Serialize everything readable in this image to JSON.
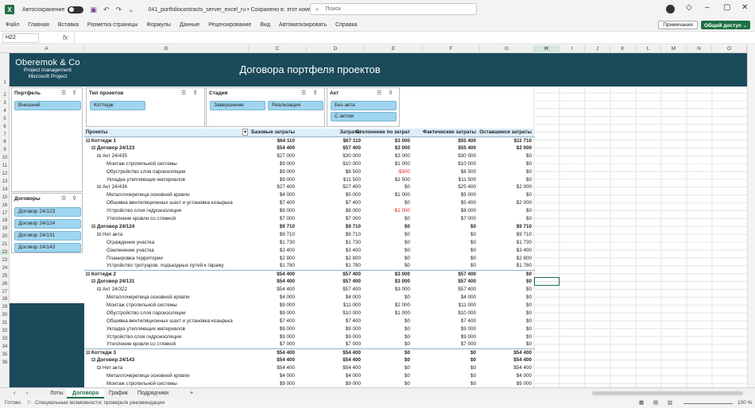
{
  "titlebar": {
    "autosave_label": "Автосохранение",
    "doc_title": "041_portfoliocontracts_server_excel_ru • Сохранено в: этот компьютер ⌄",
    "search_placeholder": "Поиск"
  },
  "menu": [
    "Файл",
    "Главная",
    "Вставка",
    "Разметка страницы",
    "Формулы",
    "Данные",
    "Рецензирование",
    "Вид",
    "Автоматизировать",
    "Справка"
  ],
  "buttons": {
    "notes": "Примечания",
    "share": "Общий доступ ⌄"
  },
  "formula_bar": {
    "name_box": "H22",
    "fx": "fx"
  },
  "columns": [
    "A",
    "B",
    "C",
    "D",
    "E",
    "F",
    "G",
    "H",
    "I",
    "J",
    "K",
    "L",
    "M",
    "N",
    "O"
  ],
  "rows": [
    "1",
    "2",
    "3",
    "4",
    "5",
    "6",
    "7",
    "8",
    "9",
    "10",
    "11",
    "12",
    "13",
    "14",
    "15",
    "16",
    "17",
    "18",
    "19",
    "20",
    "21",
    "22",
    "23",
    "24",
    "25",
    "26",
    "27",
    "28",
    "29",
    "30",
    "31",
    "32",
    "33",
    "34",
    "35",
    "36"
  ],
  "banner": {
    "logo_name": "Oberemok & Co",
    "logo_sub1": "Project management",
    "logo_sub2": "Microsoft Project",
    "title": "Договора портфеля проектов"
  },
  "slicers": {
    "portfolio": {
      "title": "Портфель",
      "items": [
        "Внешний"
      ]
    },
    "project_type": {
      "title": "Тип проектов",
      "items": [
        "Коттедж"
      ]
    },
    "stage": {
      "title": "Стадия",
      "items": [
        "Завершение",
        "Реализация"
      ]
    },
    "act": {
      "title": "Акт",
      "items": [
        "Без акта",
        "С актом"
      ]
    },
    "contracts": {
      "title": "Договоры",
      "items": [
        "Договор 24/123",
        "Договор 24/124",
        "Договор 24/131",
        "Договор 24/143"
      ]
    }
  },
  "pivot": {
    "headers": [
      "Проекты",
      "Базовые затраты",
      "Затраты",
      "Отклонение по затрат",
      "Фактические затраты",
      "Оставшиеся затраты"
    ],
    "rows": [
      {
        "l": 1,
        "t": "⊟ Коттедж 1",
        "v": [
          "$64 110",
          "$67 110",
          "$3 000",
          "$55 400",
          "$11 710"
        ]
      },
      {
        "l": 2,
        "t": "⊟ Договор 24/123",
        "v": [
          "$54 400",
          "$57 400",
          "$3 000",
          "$55 400",
          "$2 000"
        ]
      },
      {
        "l": 3,
        "t": "⊟ Акт 24/435",
        "v": [
          "$27 000",
          "$30 000",
          "$3 000",
          "$30 000",
          "$0"
        ]
      },
      {
        "l": 4,
        "t": "Монтаж стропильной системы",
        "v": [
          "$9 000",
          "$10 000",
          "$1 000",
          "$10 000",
          "$0"
        ]
      },
      {
        "l": 4,
        "t": "Обустройство слоя пароизоляции",
        "v": [
          "$9 000",
          "$8 500",
          "-$500",
          "$8 500",
          "$0"
        ]
      },
      {
        "l": 4,
        "t": "Укладка утепляющих материалов",
        "v": [
          "$9 000",
          "$11 500",
          "$2 500",
          "$11 500",
          "$0"
        ]
      },
      {
        "l": 3,
        "t": "⊟ Акт 24/436",
        "v": [
          "$27 400",
          "$27 400",
          "$0",
          "$25 400",
          "$2 000"
        ]
      },
      {
        "l": 4,
        "t": "Металлочерепица основной кровли",
        "v": [
          "$4 000",
          "$5 000",
          "$1 000",
          "$5 000",
          "$0"
        ]
      },
      {
        "l": 4,
        "t": "Обшивка вентиляционных шахт и установка козырька",
        "v": [
          "$7 400",
          "$7 400",
          "$0",
          "$5 400",
          "$2 000"
        ]
      },
      {
        "l": 4,
        "t": "Устройство слоя гидроизоляции",
        "v": [
          "$9 000",
          "$8 000",
          "-$1 000",
          "$8 000",
          "$0"
        ]
      },
      {
        "l": 4,
        "t": "Утепление кровли со стяжкой",
        "v": [
          "$7 000",
          "$7 000",
          "$0",
          "$7 000",
          "$0"
        ]
      },
      {
        "l": 2,
        "t": "⊟ Договор 24/124",
        "v": [
          "$9 710",
          "$9 710",
          "$0",
          "$0",
          "$9 710"
        ]
      },
      {
        "l": 3,
        "t": "⊟ Нет акта",
        "v": [
          "$9 710",
          "$9 710",
          "$0",
          "$0",
          "$9 710"
        ]
      },
      {
        "l": 4,
        "t": "Ограждение участка",
        "v": [
          "$1 730",
          "$1 730",
          "$0",
          "$0",
          "$1 730"
        ]
      },
      {
        "l": 4,
        "t": "Озеленение участка",
        "v": [
          "$3 400",
          "$3 400",
          "$0",
          "$0",
          "$3 400"
        ]
      },
      {
        "l": 4,
        "t": "Планировка территории",
        "v": [
          "$2 800",
          "$2 800",
          "$0",
          "$0",
          "$2 800"
        ]
      },
      {
        "l": 4,
        "t": "Устройство тротуаров, подъездных путей к гаражу",
        "v": [
          "$1 780",
          "$1 780",
          "$0",
          "$0",
          "$1 780"
        ]
      },
      {
        "l": 1,
        "t": "⊟ Коттедж 2",
        "v": [
          "$54 400",
          "$57 400",
          "$3 000",
          "$57 400",
          "$0"
        ]
      },
      {
        "l": 2,
        "t": "⊟ Договор 24/131",
        "v": [
          "$54 400",
          "$57 400",
          "$3 000",
          "$57 400",
          "$0"
        ]
      },
      {
        "l": 3,
        "t": "⊟ Акт 24/322",
        "v": [
          "$54 400",
          "$57 400",
          "$3 000",
          "$57 400",
          "$0"
        ]
      },
      {
        "l": 4,
        "t": "Металлочерепица основной кровли",
        "v": [
          "$4 000",
          "$4 000",
          "$0",
          "$4 000",
          "$0"
        ]
      },
      {
        "l": 4,
        "t": "Монтаж стропильной системы",
        "v": [
          "$9 000",
          "$11 000",
          "$2 000",
          "$11 000",
          "$0"
        ]
      },
      {
        "l": 4,
        "t": "Обустройство слоя пароизоляции",
        "v": [
          "$9 000",
          "$10 000",
          "$1 000",
          "$10 000",
          "$0"
        ]
      },
      {
        "l": 4,
        "t": "Обшивка вентиляционных шахт и установка козырька",
        "v": [
          "$7 400",
          "$7 400",
          "$0",
          "$7 400",
          "$0"
        ]
      },
      {
        "l": 4,
        "t": "Укладка утепляющих материалов",
        "v": [
          "$9 000",
          "$9 000",
          "$0",
          "$9 000",
          "$0"
        ]
      },
      {
        "l": 4,
        "t": "Устройство слоя гидроизоляции",
        "v": [
          "$9 000",
          "$9 000",
          "$0",
          "$9 000",
          "$0"
        ]
      },
      {
        "l": 4,
        "t": "Утепление кровли со стяжкой",
        "v": [
          "$7 000",
          "$7 000",
          "$0",
          "$7 000",
          "$0"
        ]
      },
      {
        "l": 1,
        "t": "⊟ Коттедж 3",
        "v": [
          "$54 400",
          "$54 400",
          "$0",
          "$0",
          "$54 400"
        ]
      },
      {
        "l": 2,
        "t": "⊟ Договор 24/143",
        "v": [
          "$54 400",
          "$54 400",
          "$0",
          "$0",
          "$54 400"
        ]
      },
      {
        "l": 3,
        "t": "⊟ Нет акта",
        "v": [
          "$54 400",
          "$54 400",
          "$0",
          "$0",
          "$54 400"
        ]
      },
      {
        "l": 4,
        "t": "Металлочерепица основной кровли",
        "v": [
          "$4 000",
          "$4 000",
          "$0",
          "$0",
          "$4 000"
        ]
      },
      {
        "l": 4,
        "t": "Монтаж стропильной системы",
        "v": [
          "$9 000",
          "$9 000",
          "$0",
          "$0",
          "$9 000"
        ]
      }
    ]
  },
  "sheet_tabs": [
    "Лоты",
    "Договора",
    "График",
    "Подрядчики"
  ],
  "active_tab": "Договора",
  "status": {
    "ready": "Готово",
    "accessibility": "Специальные возможности: проверьте рекомендации",
    "zoom": "100 %"
  }
}
